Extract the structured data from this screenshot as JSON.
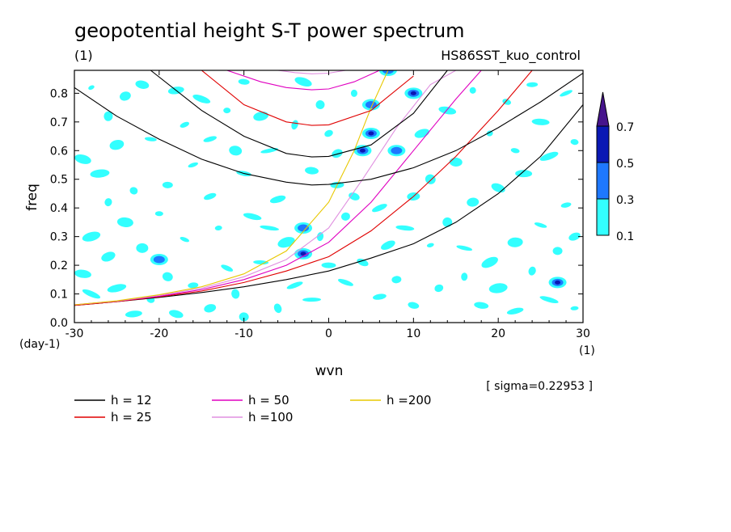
{
  "chart_data": {
    "type": "heatmap",
    "title": "geopotential height S-T power spectrum",
    "subtitle": "(1)",
    "experiment": "HS86SST_kuo_control",
    "xlabel": "wvn",
    "ylabel": "freq",
    "x_unit": "(1)",
    "y_unit": "(day-1)",
    "xlim": [
      -30,
      30
    ],
    "ylim": [
      0,
      0.88
    ],
    "xticks": [
      -30,
      -20,
      -10,
      0,
      10,
      20,
      30
    ],
    "yticks": [
      0.0,
      0.1,
      0.2,
      0.3,
      0.4,
      0.5,
      0.6,
      0.7,
      0.8
    ],
    "xtick_labels": [
      "-30",
      "-20",
      "-10",
      "0",
      "10",
      "20",
      "30"
    ],
    "ytick_labels": [
      "0.0",
      "0.1",
      "0.2",
      "0.3",
      "0.4",
      "0.5",
      "0.6",
      "0.7",
      "0.8"
    ],
    "sigma_label": "[ sigma=0.22953 ]",
    "colorbar": {
      "levels": [
        0.1,
        0.3,
        0.5,
        0.7
      ],
      "labels": [
        "0.1",
        "0.3",
        "0.5",
        "0.7"
      ],
      "colors": [
        "#33ffff",
        "#1e78ff",
        "#0a18b4",
        "#46148c"
      ]
    },
    "series": [
      {
        "name": "h = 12",
        "color": "#000000"
      },
      {
        "name": "h = 25",
        "color": "#e00000"
      },
      {
        "name": "h = 50",
        "color": "#e000c0"
      },
      {
        "name": "h =100",
        "color": "#e090e0"
      },
      {
        "name": "h =200",
        "color": "#e8c800"
      }
    ],
    "curves": [
      {
        "h": 12,
        "x": [
          -30,
          -25,
          -20,
          -15,
          -10,
          -5,
          0,
          5,
          10,
          15,
          20,
          25,
          30
        ],
        "y": [
          0.06,
          0.073,
          0.088,
          0.105,
          0.125,
          0.15,
          0.18,
          0.225,
          0.275,
          0.35,
          0.45,
          0.58,
          0.76
        ]
      },
      {
        "h": 25,
        "x": [
          -30,
          -25,
          -20,
          -15,
          -10,
          -5,
          0,
          5,
          10,
          15,
          20,
          24
        ],
        "y": [
          0.06,
          0.073,
          0.09,
          0.11,
          0.14,
          0.18,
          0.23,
          0.32,
          0.44,
          0.58,
          0.74,
          0.88
        ]
      },
      {
        "h": 50,
        "x": [
          -30,
          -25,
          -20,
          -15,
          -10,
          -5,
          0,
          5,
          10,
          15,
          18
        ],
        "y": [
          0.062,
          0.075,
          0.092,
          0.115,
          0.15,
          0.2,
          0.28,
          0.42,
          0.6,
          0.78,
          0.88
        ]
      },
      {
        "h": 100,
        "x": [
          -30,
          -25,
          -20,
          -15,
          -10,
          -5,
          0,
          4,
          8,
          12,
          15
        ],
        "y": [
          0.062,
          0.075,
          0.095,
          0.12,
          0.16,
          0.22,
          0.33,
          0.5,
          0.68,
          0.83,
          0.88
        ]
      },
      {
        "h": 200,
        "x": [
          -30,
          -25,
          -20,
          -15,
          -10,
          -5,
          0,
          3,
          5,
          7
        ],
        "y": [
          0.062,
          0.076,
          0.097,
          0.125,
          0.17,
          0.25,
          0.42,
          0.6,
          0.75,
          0.88
        ]
      },
      {
        "h": 12,
        "x": [
          -30,
          -25,
          -20,
          -15,
          -10,
          -5,
          -2,
          0,
          5,
          10,
          15,
          20,
          25,
          30
        ],
        "y": [
          0.82,
          0.72,
          0.64,
          0.57,
          0.52,
          0.49,
          0.48,
          0.482,
          0.5,
          0.54,
          0.6,
          0.68,
          0.77,
          0.87
        ]
      },
      {
        "h": 12,
        "x": [
          -21,
          -15,
          -10,
          -5,
          -2,
          0,
          5,
          10,
          14
        ],
        "y": [
          0.88,
          0.74,
          0.65,
          0.59,
          0.578,
          0.58,
          0.62,
          0.73,
          0.88
        ]
      },
      {
        "h": 25,
        "x": [
          -15,
          -10,
          -5,
          -2,
          0,
          5,
          10
        ],
        "y": [
          0.88,
          0.76,
          0.7,
          0.688,
          0.69,
          0.74,
          0.86
        ]
      },
      {
        "h": 50,
        "x": [
          -12,
          -8,
          -5,
          -2,
          0,
          3,
          6
        ],
        "y": [
          0.88,
          0.84,
          0.82,
          0.812,
          0.815,
          0.84,
          0.88
        ]
      },
      {
        "h": 100,
        "x": [
          -6,
          -4,
          -2,
          0,
          2
        ],
        "y": [
          0.88,
          0.872,
          0.868,
          0.87,
          0.88
        ]
      }
    ],
    "spectral_peaks": [
      {
        "x": -3,
        "y": 0.24,
        "level": 0.5
      },
      {
        "x": 10,
        "y": 0.8,
        "level": 0.5
      },
      {
        "x": 5,
        "y": 0.66,
        "level": 0.5
      },
      {
        "x": 4,
        "y": 0.6,
        "level": 0.5
      },
      {
        "x": 5,
        "y": 0.76,
        "level": 0.3
      },
      {
        "x": 27,
        "y": 0.14,
        "level": 0.5
      },
      {
        "x": -20,
        "y": 0.22,
        "level": 0.3
      },
      {
        "x": 7,
        "y": 0.88,
        "level": 0.3
      },
      {
        "x": 8,
        "y": 0.6,
        "level": 0.3
      },
      {
        "x": -3,
        "y": 0.33,
        "level": 0.3
      }
    ],
    "noise_patches": [
      [
        -28,
        0.82
      ],
      [
        -26,
        0.72
      ],
      [
        -24,
        0.79
      ],
      [
        -22,
        0.83
      ],
      [
        -18,
        0.81
      ],
      [
        -15,
        0.78
      ],
      [
        -12,
        0.74
      ],
      [
        -17,
        0.69
      ],
      [
        -21,
        0.64
      ],
      [
        -25,
        0.62
      ],
      [
        -29,
        0.57
      ],
      [
        -27,
        0.52
      ],
      [
        -23,
        0.46
      ],
      [
        -19,
        0.48
      ],
      [
        -14,
        0.44
      ],
      [
        -10,
        0.52
      ],
      [
        -7,
        0.6
      ],
      [
        -4,
        0.69
      ],
      [
        -1,
        0.76
      ],
      [
        1,
        0.59
      ],
      [
        -2,
        0.53
      ],
      [
        -6,
        0.43
      ],
      [
        -9,
        0.37
      ],
      [
        -13,
        0.33
      ],
      [
        -17,
        0.29
      ],
      [
        -22,
        0.26
      ],
      [
        -26,
        0.23
      ],
      [
        -29,
        0.17
      ],
      [
        -25,
        0.12
      ],
      [
        -21,
        0.08
      ],
      [
        -16,
        0.13
      ],
      [
        -12,
        0.19
      ],
      [
        -8,
        0.21
      ],
      [
        -5,
        0.28
      ],
      [
        -1,
        0.3
      ],
      [
        2,
        0.37
      ],
      [
        3,
        0.44
      ],
      [
        1,
        0.48
      ],
      [
        6,
        0.4
      ],
      [
        9,
        0.33
      ],
      [
        12,
        0.27
      ],
      [
        14,
        0.35
      ],
      [
        17,
        0.42
      ],
      [
        20,
        0.47
      ],
      [
        23,
        0.52
      ],
      [
        26,
        0.58
      ],
      [
        29,
        0.63
      ],
      [
        28,
        0.41
      ],
      [
        25,
        0.34
      ],
      [
        22,
        0.28
      ],
      [
        19,
        0.21
      ],
      [
        16,
        0.16
      ],
      [
        13,
        0.12
      ],
      [
        10,
        0.06
      ],
      [
        6,
        0.09
      ],
      [
        2,
        0.14
      ],
      [
        -2,
        0.08
      ],
      [
        -6,
        0.05
      ],
      [
        -10,
        0.02
      ],
      [
        -14,
        0.05
      ],
      [
        -18,
        0.03
      ],
      [
        -23,
        0.03
      ],
      [
        -28,
        0.1
      ],
      [
        -20,
        0.38
      ],
      [
        -16,
        0.55
      ],
      [
        -11,
        0.6
      ],
      [
        -8,
        0.72
      ],
      [
        -3,
        0.84
      ],
      [
        3,
        0.8
      ],
      [
        0,
        0.66
      ],
      [
        -10,
        0.84
      ],
      [
        -14,
        0.64
      ],
      [
        16,
        0.26
      ],
      [
        20,
        0.12
      ],
      [
        24,
        0.18
      ],
      [
        27,
        0.25
      ],
      [
        29,
        0.3
      ],
      [
        18,
        0.06
      ],
      [
        22,
        0.04
      ],
      [
        26,
        0.08
      ],
      [
        29,
        0.05
      ],
      [
        12,
        0.5
      ],
      [
        15,
        0.56
      ],
      [
        11,
        0.66
      ],
      [
        14,
        0.74
      ],
      [
        17,
        0.81
      ],
      [
        21,
        0.77
      ],
      [
        24,
        0.83
      ],
      [
        28,
        0.8
      ],
      [
        -24,
        0.35
      ],
      [
        -28,
        0.3
      ],
      [
        -26,
        0.42
      ],
      [
        8,
        0.15
      ],
      [
        4,
        0.21
      ],
      [
        0,
        0.2
      ],
      [
        -4,
        0.13
      ],
      [
        -7,
        0.33
      ],
      [
        -11,
        0.1
      ],
      [
        -19,
        0.16
      ],
      [
        10,
        0.44
      ],
      [
        7,
        0.27
      ],
      [
        25,
        0.7
      ],
      [
        19,
        0.66
      ],
      [
        22,
        0.6
      ]
    ]
  }
}
